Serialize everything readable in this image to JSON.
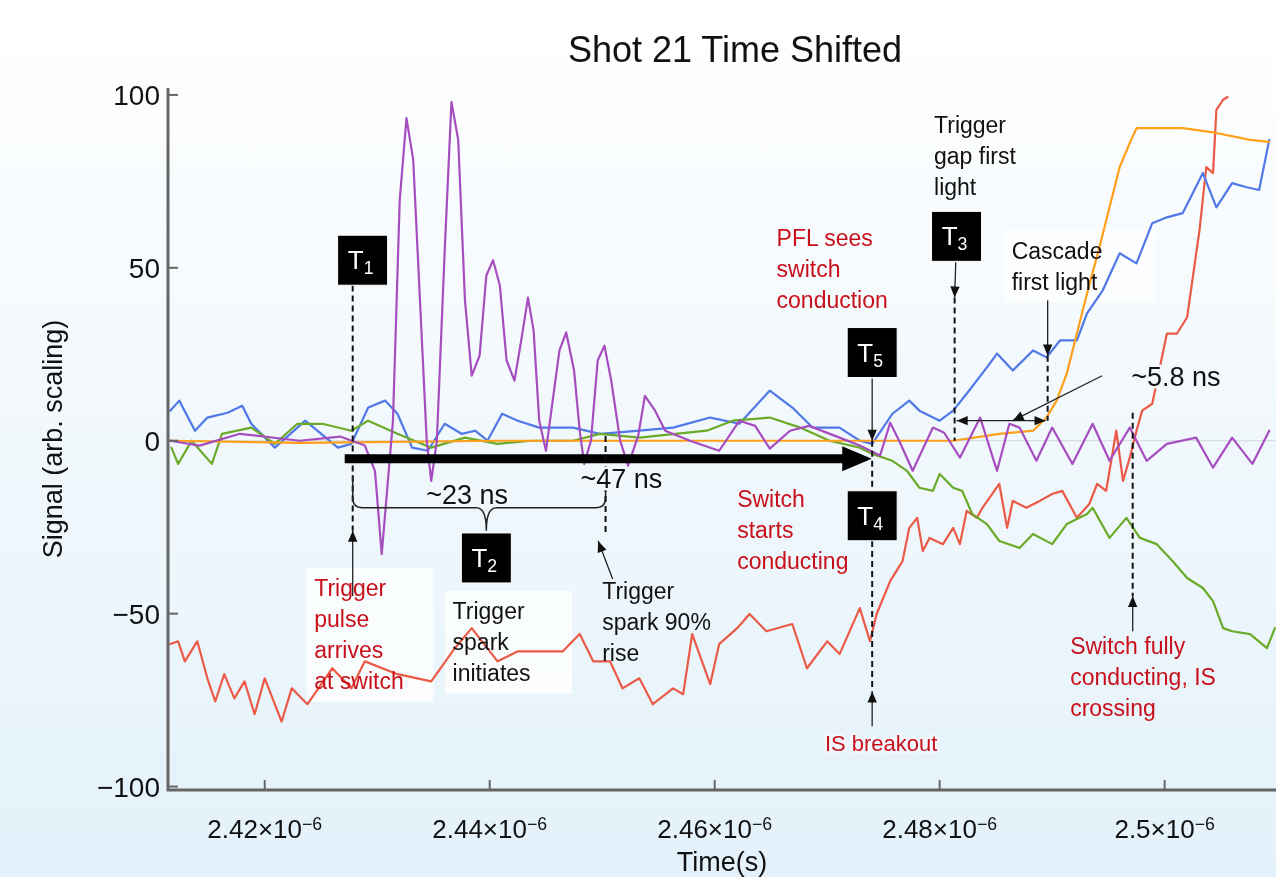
{
  "chart_data": {
    "type": "line",
    "title": "Shot 21 Time Shifted",
    "xlabel": "Time(s)",
    "ylabel": "Signal (arb. scaling)",
    "xlim": [
      2.4114e-06,
      2.5099e-06
    ],
    "ylim": [
      -101,
      102
    ],
    "xticks": [
      {
        "value": 2.42e-06,
        "label": "2.42×10$^{−6}$"
      },
      {
        "value": 2.44e-06,
        "label": "2.44×10$^{−6}$"
      },
      {
        "value": 2.46e-06,
        "label": "2.46×10$^{−6}$"
      },
      {
        "value": 2.48e-06,
        "label": "2.48×10$^{−6}$"
      },
      {
        "value": 2.5e-06,
        "label": "2.5×10$^{−6}$"
      }
    ],
    "yticks": [
      {
        "value": -100,
        "label": "−100"
      },
      {
        "value": -50,
        "label": "−50"
      },
      0,
      50,
      100
    ],
    "ref_lines": [
      {
        "axis": "y",
        "value": 0,
        "color": "#d0d8dc"
      }
    ],
    "series": [
      {
        "color": "#eb5a46",
        "x": [
          2.4116e-06,
          2.4123e-06,
          2.4129e-06,
          2.414e-06,
          2.4149e-06,
          2.4156e-06,
          2.4164e-06,
          2.4173e-06,
          2.4182e-06,
          2.4191e-06,
          2.42e-06,
          2.4215e-06,
          2.4224e-06,
          2.4238e-06,
          2.426e-06,
          2.4277e-06,
          2.4289e-06,
          2.4318e-06,
          2.4348e-06,
          2.4369e-06,
          2.4384e-06,
          2.4407e-06,
          2.4425e-06,
          2.4444e-06,
          2.4465e-06,
          2.448e-06,
          2.4492e-06,
          2.4507e-06,
          2.4518e-06,
          2.4533e-06,
          2.4545e-06,
          2.4563e-06,
          2.4572e-06,
          2.458e-06,
          2.4596e-06,
          2.4604e-06,
          2.462e-06,
          2.4631e-06,
          2.4646e-06,
          2.4669e-06,
          2.4682e-06,
          2.47e-06,
          2.4711e-06,
          2.4729e-06,
          2.4738e-06,
          2.4744e-06,
          2.4756e-06,
          2.4767e-06,
          2.4773e-06,
          2.478e-06,
          2.4785e-06,
          2.4791e-06,
          2.4803e-06,
          2.4812e-06,
          2.4818e-06,
          2.4824e-06,
          2.4833e-06,
          2.4838e-06,
          2.4853e-06,
          2.486e-06,
          2.4865e-06,
          2.4877e-06,
          2.4889e-06,
          2.49e-06,
          2.4909e-06,
          2.4922e-06,
          2.4933e-06,
          2.494e-06,
          2.4948e-06,
          2.4957e-06,
          2.4963e-06,
          2.4969e-06,
          2.4975e-06,
          2.498e-06,
          2.4989e-06,
          2.5002e-06,
          2.5011e-06,
          2.502e-06,
          2.5031e-06,
          2.5037e-06,
          2.5043e-06,
          2.5046e-06,
          2.5052e-06,
          2.5056e-06
        ],
        "values": [
          -58.8,
          -58,
          -63.8,
          -58,
          -68.7,
          -75.4,
          -67.5,
          -74.5,
          -69.6,
          -79.1,
          -68.7,
          -81.2,
          -71.6,
          -76.2,
          -65.8,
          -71.6,
          -63.8,
          -67.5,
          -69.6,
          -60,
          -54.2,
          -63.8,
          -60.9,
          -60.9,
          -60.9,
          -55.9,
          -63.8,
          -63.8,
          -71.6,
          -68.7,
          -76.2,
          -71.6,
          -73.3,
          -55.9,
          -70.4,
          -58.8,
          -54.2,
          -50.1,
          -55.1,
          -53,
          -65.8,
          -58,
          -61.7,
          -48.4,
          -58,
          -50.1,
          -40.6,
          -34.8,
          -25.2,
          -22.3,
          -31.9,
          -28.1,
          -29.9,
          -25.2,
          -29.9,
          -20.3,
          -22.3,
          -19.4,
          -12.5,
          -25.2,
          -17.4,
          -19.4,
          -17.4,
          -15.4,
          -14.5,
          -22.3,
          -18.3,
          -12.5,
          -14.5,
          2.9,
          -11.6,
          -4.9,
          2.9,
          8.7,
          10.7,
          31,
          31,
          35.7,
          60.9,
          79.1,
          77.4,
          95.7,
          98.6,
          99.4
        ]
      },
      {
        "color": "#5078e6",
        "x": [
          2.4116e-06,
          2.4124e-06,
          2.4138e-06,
          2.4149e-06,
          2.4167e-06,
          2.418e-06,
          2.4188e-06,
          2.4209e-06,
          2.4236e-06,
          2.4265e-06,
          2.4277e-06,
          2.4292e-06,
          2.4307e-06,
          2.4318e-06,
          2.4331e-06,
          2.4345e-06,
          2.436e-06,
          2.4375e-06,
          2.4387e-06,
          2.4398e-06,
          2.4411e-06,
          2.4425e-06,
          2.4444e-06,
          2.4474e-06,
          2.4498e-06,
          2.4533e-06,
          2.4563e-06,
          2.4596e-06,
          2.4622e-06,
          2.4649e-06,
          2.4669e-06,
          2.4687e-06,
          2.4711e-06,
          2.4729e-06,
          2.474e-06,
          2.4758e-06,
          2.4773e-06,
          2.4782e-06,
          2.48e-06,
          2.4812e-06,
          2.4824e-06,
          2.4842e-06,
          2.4851e-06,
          2.4865e-06,
          2.4883e-06,
          2.4895e-06,
          2.4907e-06,
          2.4922e-06,
          2.4931e-06,
          2.4945e-06,
          2.496e-06,
          2.4975e-06,
          2.4989e-06,
          2.5002e-06,
          2.5016e-06,
          2.5034e-06,
          2.5046e-06,
          2.506e-06,
          2.5073e-06,
          2.5084e-06,
          2.5093e-06
        ],
        "values": [
          8.7,
          11.6,
          2.9,
          6.7,
          8.1,
          10.1,
          4.9,
          -2,
          5.8,
          -2,
          -0.9,
          9.6,
          11.6,
          7.8,
          -2,
          -2.9,
          4.9,
          2,
          2.9,
          0,
          7.8,
          5.8,
          3.8,
          3.8,
          2,
          2.9,
          3.8,
          6.7,
          4.9,
          14.5,
          9.6,
          3.8,
          3.8,
          0,
          -0.9,
          7.8,
          11.6,
          8.7,
          5.8,
          8.7,
          13.6,
          21.2,
          25.2,
          20.3,
          26.1,
          24.1,
          29,
          29,
          36.8,
          43.5,
          54.2,
          51.3,
          62.9,
          64.6,
          65.8,
          77.4,
          67.5,
          74.5,
          73.3,
          72.5,
          87
        ]
      },
      {
        "color": "#6aaa28",
        "x": [
          2.4117e-06,
          2.4123e-06,
          2.4135e-06,
          2.4153e-06,
          2.4162e-06,
          2.4188e-06,
          2.4209e-06,
          2.4229e-06,
          2.4251e-06,
          2.4277e-06,
          2.4292e-06,
          2.4318e-06,
          2.4348e-06,
          2.4378e-06,
          2.4407e-06,
          2.4437e-06,
          2.4474e-06,
          2.4498e-06,
          2.4533e-06,
          2.4593e-06,
          2.4616e-06,
          2.4649e-06,
          2.4676e-06,
          2.4702e-06,
          2.4729e-06,
          2.474e-06,
          2.4758e-06,
          2.4771e-06,
          2.4782e-06,
          2.4794e-06,
          2.48e-06,
          2.4812e-06,
          2.482e-06,
          2.4829e-06,
          2.4842e-06,
          2.4853e-06,
          2.4871e-06,
          2.4883e-06,
          2.49e-06,
          2.4913e-06,
          2.4931e-06,
          2.4936e-06,
          2.4951e-06,
          2.4966e-06,
          2.4978e-06,
          2.4993e-06,
          2.5007e-06,
          2.502e-06,
          2.5034e-06,
          2.5043e-06,
          2.5052e-06,
          2.506e-06,
          2.5076e-06,
          2.5091e-06,
          2.5098e-06
        ],
        "values": [
          -2,
          -6.7,
          0,
          -6.7,
          2,
          3.8,
          -0.9,
          4.9,
          4.9,
          2.9,
          5.8,
          2,
          -2,
          0.9,
          -0.9,
          0,
          0,
          2,
          0.9,
          2.9,
          5.8,
          6.7,
          3.8,
          0,
          -2,
          -3.8,
          -5.8,
          -8.7,
          -13.6,
          -14.5,
          -9.6,
          -13.6,
          -14.5,
          -21.2,
          -24.1,
          -29,
          -31,
          -27,
          -29.9,
          -24.1,
          -21.2,
          -19.4,
          -28.1,
          -22.3,
          -28.1,
          -29.9,
          -34.8,
          -39.7,
          -42.6,
          -46.4,
          -54.2,
          -55.1,
          -55.9,
          -60,
          -54.2
        ]
      },
      {
        "color": "#ff9f1a",
        "x": [
          2.4116e-06,
          2.4231e-06,
          2.4409e-06,
          2.4587e-06,
          2.4764e-06,
          2.4812e-06,
          2.4853e-06,
          2.4883e-06,
          2.4895e-06,
          2.4904e-06,
          2.4913e-06,
          2.4922e-06,
          2.4931e-06,
          2.4942e-06,
          2.4951e-06,
          2.496e-06,
          2.4969e-06,
          2.4975e-06,
          2.5016e-06,
          2.5046e-06,
          2.5076e-06,
          2.5093e-06
        ],
        "values": [
          0,
          -0.6,
          0,
          0,
          0,
          0,
          2,
          2.9,
          6.7,
          11.6,
          19.4,
          31,
          42.6,
          55.9,
          67.5,
          79.1,
          86.1,
          90.4,
          90.4,
          89,
          87,
          86.4
        ]
      },
      {
        "color": "#a64dbf",
        "x": [
          2.4116e-06,
          2.4142e-06,
          2.4178e-06,
          2.4231e-06,
          2.4267e-06,
          2.4289e-06,
          2.4298e-06,
          2.4304e-06,
          2.4314e-06,
          2.432e-06,
          2.4326e-06,
          2.4332e-06,
          2.4338e-06,
          2.4344e-06,
          2.4348e-06,
          2.4353e-06,
          2.436e-06,
          2.4366e-06,
          2.4372e-06,
          2.4378e-06,
          2.4384e-06,
          2.4391e-06,
          2.4397e-06,
          2.4403e-06,
          2.4409e-06,
          2.4415e-06,
          2.4422e-06,
          2.4428e-06,
          2.4434e-06,
          2.4439e-06,
          2.4444e-06,
          2.445e-06,
          2.4456e-06,
          2.4462e-06,
          2.4468e-06,
          2.4475e-06,
          2.448e-06,
          2.4484e-06,
          2.449e-06,
          2.4496e-06,
          2.4502e-06,
          2.4508e-06,
          2.4516e-06,
          2.4523e-06,
          2.4532e-06,
          2.4538e-06,
          2.4547e-06,
          2.4556e-06,
          2.4578e-06,
          2.4604e-06,
          2.4622e-06,
          2.4636e-06,
          2.4649e-06,
          2.4667e-06,
          2.4684e-06,
          2.4707e-06,
          2.4729e-06,
          2.4747e-06,
          2.4756e-06,
          2.4764e-06,
          2.4776e-06,
          2.4794e-06,
          2.4804e-06,
          2.4818e-06,
          2.4836e-06,
          2.4851e-06,
          2.4862e-06,
          2.4871e-06,
          2.4886e-06,
          2.49e-06,
          2.4918e-06,
          2.4936e-06,
          2.4951e-06,
          2.4969e-06,
          2.4984e-06,
          2.5002e-06,
          2.5028e-06,
          2.5043e-06,
          2.506e-06,
          2.5078e-06,
          2.5093e-06
        ],
        "values": [
          0,
          -1.4,
          2,
          0,
          1.2,
          -1.4,
          -8.7,
          -32.8,
          5.8,
          69.6,
          93.3,
          81.2,
          40.6,
          0,
          -11.6,
          0,
          55.1,
          98,
          87,
          40.6,
          18.8,
          24.6,
          47.8,
          52.2,
          44.9,
          23.2,
          17.4,
          29,
          41.4,
          31.9,
          5.8,
          -2.9,
          11.6,
          26.1,
          31.3,
          20.3,
          2.9,
          -6.7,
          0,
          23.2,
          27.5,
          17.4,
          0,
          -7.2,
          1.4,
          13,
          8.7,
          2.9,
          0,
          -2.9,
          5.8,
          4.3,
          -2.3,
          2.9,
          4.3,
          1.4,
          -1.4,
          -4.3,
          5.2,
          0,
          -8.7,
          3.8,
          2.3,
          -4.9,
          6.7,
          -8.7,
          4.9,
          3.8,
          -5.8,
          3.8,
          -6.7,
          4.9,
          -5.8,
          3.8,
          -5.8,
          -0.9,
          0.9,
          -7.8,
          0.9,
          -6.7,
          2.9
        ]
      }
    ],
    "annotations": [
      "T$_{1}$",
      "T$_{2}$",
      "T$_{3}$",
      {
        "text": "T$_{4}$",
        "x": 2.474e-06,
        "y": 0
      },
      {
        "text": "T$_{5}$",
        "x": 2.474e-06,
        "y": 0
      },
      "Trigger pulse arrives at switch",
      "Trigger spark initiates",
      "Trigger spark 90% rise",
      "~23 ns",
      "~47 ns",
      "PFL sees switch conduction",
      "Switch starts conducting",
      "Trigger gap first light",
      {
        "text": "Cascade first light",
        "x": 2.4896e-06,
        "y": 24.6
      },
      {
        "text": "~5.8 ns",
        "x": 2.48649e-06,
        "y": 5.8
      },
      "IS breakout",
      "Switch fully conducting, IS crossing"
    ]
  }
}
